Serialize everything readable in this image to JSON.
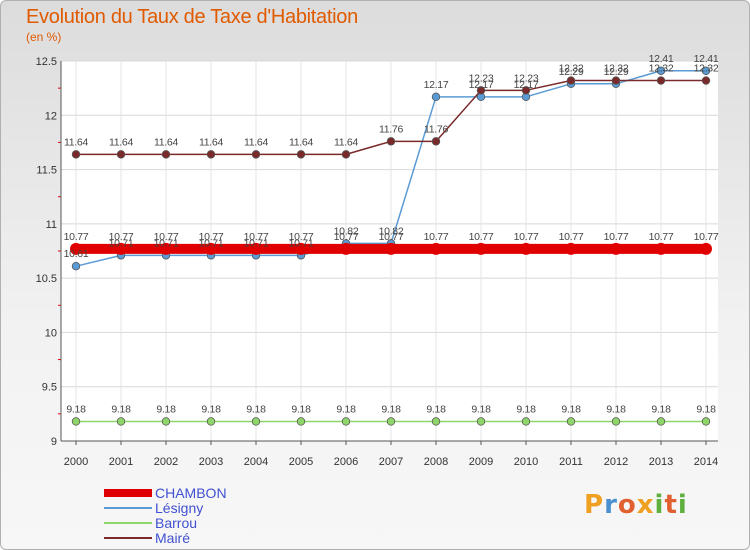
{
  "chart_data": {
    "type": "line",
    "title": "Evolution du Taux de Taxe d'Habitation",
    "subtitle": "(en %)",
    "xlabel": "",
    "ylabel": "",
    "x": [
      "2000",
      "2001",
      "2002",
      "2003",
      "2004",
      "2005",
      "2006",
      "2007",
      "2008",
      "2009",
      "2010",
      "2011",
      "2012",
      "2013",
      "2014"
    ],
    "ylim": [
      9,
      12.5
    ],
    "yticks": [
      "9",
      "9.5",
      "10",
      "10.5",
      "11",
      "11.5",
      "12",
      "12.5"
    ],
    "grid": true,
    "legend_position": "bottom-left",
    "series": [
      {
        "name": "CHAMBON",
        "color": "#e00000",
        "values": [
          10.77,
          10.77,
          10.77,
          10.77,
          10.77,
          10.77,
          10.77,
          10.77,
          10.77,
          10.77,
          10.77,
          10.77,
          10.77,
          10.77,
          10.77
        ],
        "labels": [
          "10.77",
          "10.77",
          "10.77",
          "10.77",
          "10.77",
          "10.77",
          "10.77",
          "10.77",
          "10.77",
          "10.77",
          "10.77",
          "10.77",
          "10.77",
          "10.77",
          "10.77"
        ]
      },
      {
        "name": "Lésigny",
        "color": "#5a9bd5",
        "values": [
          10.61,
          10.71,
          10.71,
          10.71,
          10.71,
          10.71,
          10.82,
          10.82,
          12.17,
          12.17,
          12.17,
          12.29,
          12.29,
          12.41,
          12.41
        ],
        "labels": [
          "10.61",
          "10.71",
          "10.71",
          "10.71",
          "10.71",
          "10.71",
          "10.82",
          "10.82",
          "12.17",
          "12.17",
          "12.17",
          "12.29",
          "12.29",
          "12.41",
          "12.41"
        ]
      },
      {
        "name": "Barrou",
        "color": "#8ed66a",
        "values": [
          9.18,
          9.18,
          9.18,
          9.18,
          9.18,
          9.18,
          9.18,
          9.18,
          9.18,
          9.18,
          9.18,
          9.18,
          9.18,
          9.18,
          9.18
        ],
        "labels": [
          "9.18",
          "9.18",
          "9.18",
          "9.18",
          "9.18",
          "9.18",
          "9.18",
          "9.18",
          "9.18",
          "9.18",
          "9.18",
          "9.18",
          "9.18",
          "9.18",
          "9.18"
        ]
      },
      {
        "name": "Mairé",
        "color": "#7a2a2a",
        "values": [
          11.64,
          11.64,
          11.64,
          11.64,
          11.64,
          11.64,
          11.64,
          11.76,
          11.76,
          12.23,
          12.23,
          12.32,
          12.32,
          12.32,
          12.32
        ],
        "labels": [
          "11.64",
          "11.64",
          "11.64",
          "11.64",
          "11.64",
          "11.64",
          "11.64",
          "11.76",
          "11.76",
          "12.23",
          "12.23",
          "12.32",
          "12.32",
          "12.32",
          "12.32"
        ]
      }
    ]
  },
  "logo": {
    "letters": [
      "P",
      "r",
      "o",
      "x",
      "i",
      "t",
      "i"
    ],
    "colors": [
      "#f0a020",
      "#4a90d0",
      "#e06030",
      "#f0a020",
      "#60b040",
      "#e06030",
      "#60b040"
    ]
  }
}
